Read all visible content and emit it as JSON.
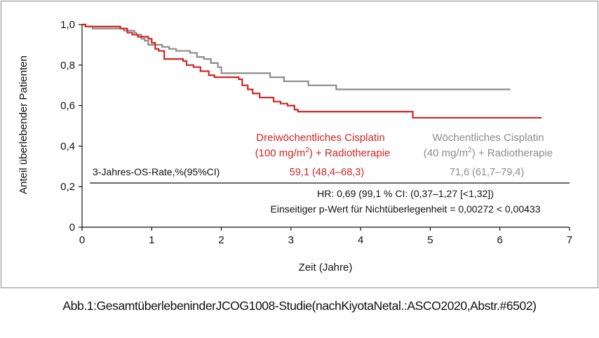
{
  "chart_data": {
    "type": "line",
    "title": "",
    "xlabel": "Zeit (Jahre)",
    "ylabel": "Anteil überlebender Patienten",
    "xlim": [
      0,
      7
    ],
    "ylim": [
      0,
      1.0
    ],
    "x_ticks": [
      0,
      1,
      2,
      3,
      4,
      5,
      6,
      7
    ],
    "x_tick_labels": [
      "0",
      "1",
      "2",
      "3",
      "4",
      "5",
      "6",
      "7"
    ],
    "y_ticks": [
      0,
      0.2,
      0.4,
      0.6,
      0.8,
      1.0
    ],
    "y_tick_labels": [
      "0",
      "0,2",
      "0,4",
      "0,6",
      "0,8",
      "1,0"
    ],
    "grid": false,
    "series": [
      {
        "name": "Wöchentliches Cisplatin (40 mg/m²) + Radiotherapie",
        "name_line1": "Wöchentliches Cisplatin",
        "name_line2_pre": "(40 mg/m",
        "name_line2_sup": "2",
        "name_line2_post": ") + Radiotherapie",
        "color": "#8c8c8c",
        "os_rate": "71,6 (61,7–79,4)",
        "steps": [
          [
            0,
            1.0
          ],
          [
            0.05,
            0.99
          ],
          [
            0.15,
            0.98
          ],
          [
            0.35,
            0.98
          ],
          [
            0.6,
            0.97
          ],
          [
            0.75,
            0.96
          ],
          [
            0.78,
            0.95
          ],
          [
            0.85,
            0.93
          ],
          [
            0.9,
            0.92
          ],
          [
            0.95,
            0.9
          ],
          [
            1.15,
            0.89
          ],
          [
            1.25,
            0.88
          ],
          [
            1.35,
            0.87
          ],
          [
            1.55,
            0.86
          ],
          [
            1.65,
            0.84
          ],
          [
            1.75,
            0.83
          ],
          [
            1.85,
            0.81
          ],
          [
            1.95,
            0.79
          ],
          [
            2.0,
            0.76
          ],
          [
            2.4,
            0.76
          ],
          [
            2.7,
            0.74
          ],
          [
            2.9,
            0.72
          ],
          [
            3.25,
            0.7
          ],
          [
            3.55,
            0.7
          ],
          [
            3.65,
            0.68
          ],
          [
            6.15,
            0.68
          ]
        ]
      },
      {
        "name": "Dreiwöchentliches Cisplatin (100 mg/m²) + Radiotherapie",
        "name_line1": "Dreiwöchentliches Cisplatin",
        "name_line2_pre": "(100 mg/m",
        "name_line2_sup": "2",
        "name_line2_post": ") + Radiotherapie",
        "color": "#d42424",
        "os_rate": "59,1 (48,4–68,3)",
        "steps": [
          [
            0,
            1.0
          ],
          [
            0.05,
            0.99
          ],
          [
            0.55,
            0.98
          ],
          [
            0.65,
            0.96
          ],
          [
            0.72,
            0.95
          ],
          [
            0.8,
            0.94
          ],
          [
            0.95,
            0.93
          ],
          [
            1.0,
            0.91
          ],
          [
            1.05,
            0.88
          ],
          [
            1.1,
            0.87
          ],
          [
            1.18,
            0.83
          ],
          [
            1.45,
            0.82
          ],
          [
            1.5,
            0.8
          ],
          [
            1.6,
            0.79
          ],
          [
            1.7,
            0.77
          ],
          [
            1.82,
            0.75
          ],
          [
            1.9,
            0.74
          ],
          [
            2.25,
            0.73
          ],
          [
            2.3,
            0.7
          ],
          [
            2.38,
            0.68
          ],
          [
            2.45,
            0.66
          ],
          [
            2.55,
            0.64
          ],
          [
            2.75,
            0.62
          ],
          [
            2.85,
            0.61
          ],
          [
            2.95,
            0.6
          ],
          [
            3.05,
            0.58
          ],
          [
            3.1,
            0.57
          ],
          [
            4.75,
            0.54
          ],
          [
            6.6,
            0.54
          ]
        ]
      }
    ],
    "table": {
      "row_label": "3-Jahres-OS-Rate,%(95%CI)",
      "hr_text": "HR: 0,69 (99,1 % CI: (0,37–1,27 [<1,32])",
      "p_text": "Einseitiger p-Wert für Nichtüberlegenheit = 0,00272 < 0,00433"
    }
  },
  "caption": "Abb.1:GesamtüberlebeninderJCOG1008-Studie(nachKiyotaNetal.:ASCO2020,Abstr.#6502)"
}
